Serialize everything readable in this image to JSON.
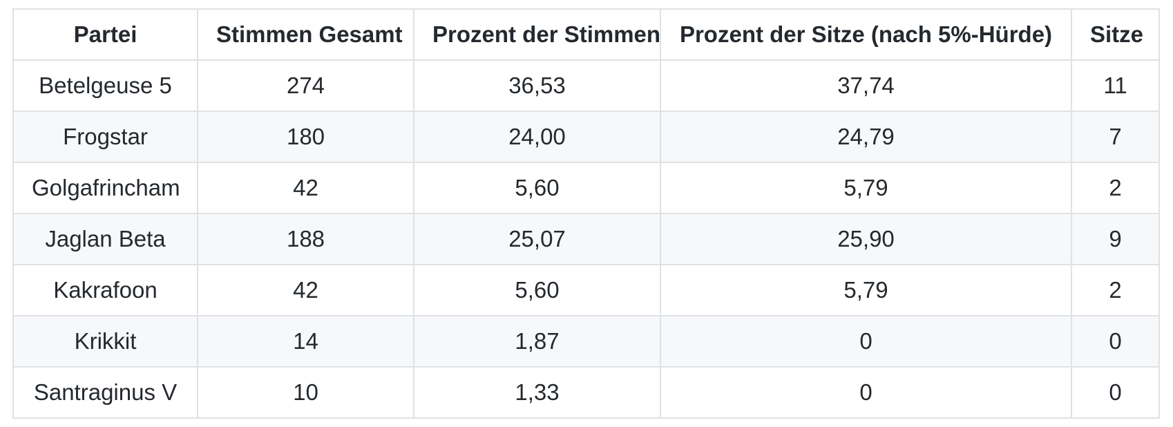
{
  "table": {
    "headers": [
      "Partei",
      "Stimmen Gesamt",
      "Prozent der Stimmen",
      "Prozent der Sitze (nach 5%-Hürde)",
      "Sitze"
    ],
    "rows": [
      [
        "Betelgeuse 5",
        "274",
        "36,53",
        "37,74",
        "11"
      ],
      [
        "Frogstar",
        "180",
        "24,00",
        "24,79",
        "7"
      ],
      [
        "Golgafrincham",
        "42",
        "5,60",
        "5,79",
        "2"
      ],
      [
        "Jaglan Beta",
        "188",
        "25,07",
        "25,90",
        "9"
      ],
      [
        "Kakrafoon",
        "42",
        "5,60",
        "5,79",
        "2"
      ],
      [
        "Krikkit",
        "14",
        "1,87",
        "0",
        "0"
      ],
      [
        "Santraginus V",
        "10",
        "1,33",
        "0",
        "0"
      ]
    ]
  },
  "colors": {
    "border": "#dfe2e5",
    "stripe_background": "#f6f8fa",
    "text": "#24292e",
    "background": "#ffffff"
  }
}
